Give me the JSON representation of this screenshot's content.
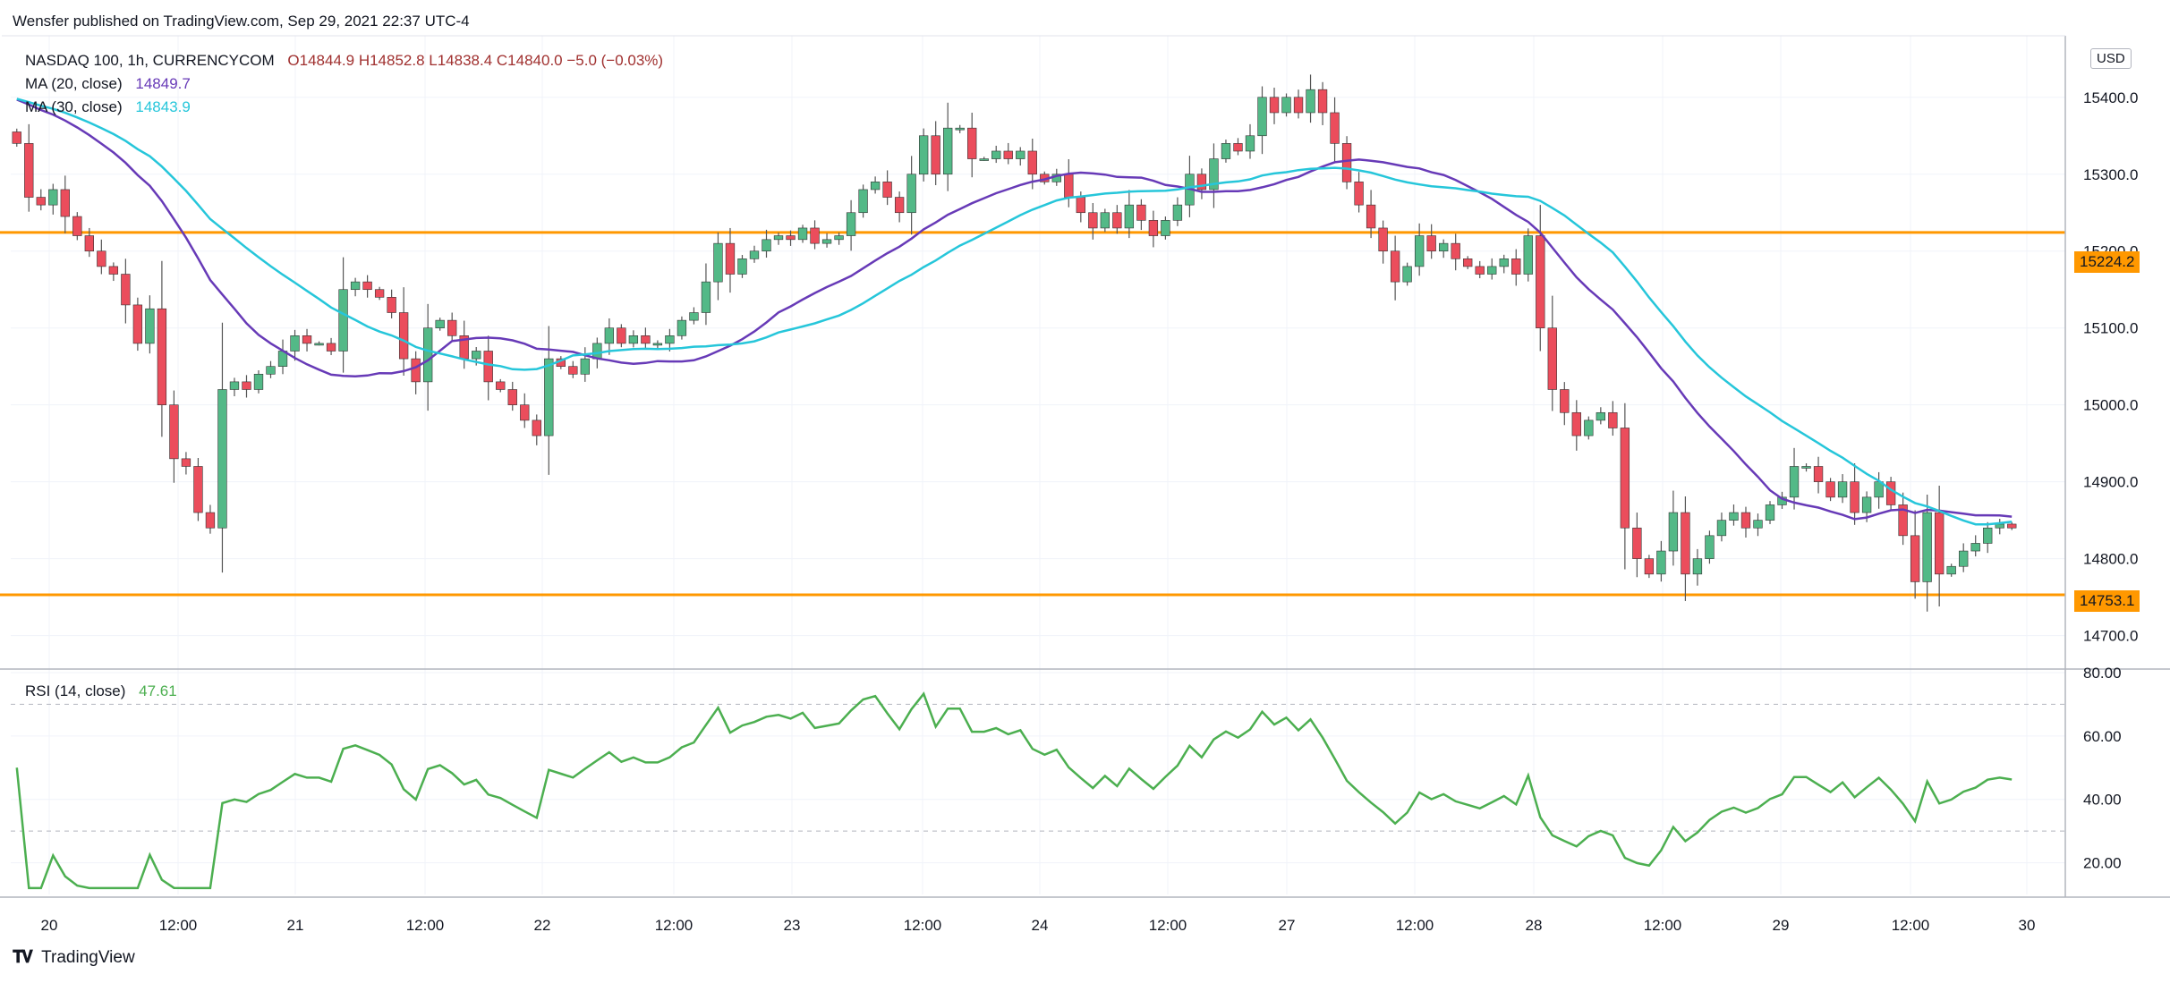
{
  "header": {
    "published_by": "Wensfer published on TradingView.com, Sep 29, 2021 22:37 UTC-4"
  },
  "legend": {
    "symbol": "NASDAQ 100, 1h, CURRENCYCOM",
    "ohlc": "O14844.9  H14852.8  L14838.4  C14840.0  −5.0 (−0.03%)",
    "ma20_label": "MA (20, close)",
    "ma20_value": "14849.7",
    "ma30_label": "MA (30, close)",
    "ma30_value": "14843.9",
    "rsi_label": "RSI (14, close)",
    "rsi_value": "47.61"
  },
  "currency_badge": "USD",
  "levels": {
    "upper": "15224.2",
    "lower": "14753.1"
  },
  "footer": {
    "logo_text": "TradingView"
  },
  "colors": {
    "up": "#53b987",
    "down": "#eb4d5c",
    "ma20": "#673ab7",
    "ma30": "#26c6da",
    "rsi": "#4caf50",
    "level": "#ff9800",
    "grid": "#f0f3fa"
  },
  "chart_data": [
    {
      "type": "candlestick",
      "title": "NASDAQ 100, 1h, CURRENCYCOM",
      "ylim": [
        14660,
        15480
      ],
      "y_ticks": [
        14700,
        14800,
        14900,
        15000,
        15100,
        15200,
        15300,
        15400,
        15500
      ],
      "x_ticks": [
        "20",
        "12:00",
        "21",
        "12:00",
        "22",
        "12:00",
        "23",
        "12:00",
        "24",
        "12:00",
        "27",
        "12:00",
        "28",
        "12:00",
        "29",
        "12:00",
        "30"
      ],
      "horizontal_levels": [
        15224.2,
        14753.1
      ],
      "close": [
        15340,
        15270,
        15260,
        15280,
        15245,
        15220,
        15200,
        15180,
        15170,
        15130,
        15080,
        15125,
        15000,
        14930,
        14920,
        14860,
        14840,
        15020,
        15030,
        15020,
        15040,
        15050,
        15070,
        15090,
        15080,
        15080,
        15070,
        15150,
        15160,
        15150,
        15140,
        15120,
        15060,
        15030,
        15100,
        15110,
        15090,
        15060,
        15070,
        15030,
        15020,
        15000,
        14980,
        14960,
        15060,
        15050,
        15040,
        15060,
        15080,
        15100,
        15080,
        15090,
        15080,
        15080,
        15090,
        15110,
        15120,
        15160,
        15210,
        15170,
        15190,
        15200,
        15215,
        15220,
        15215,
        15230,
        15210,
        15215,
        15220,
        15250,
        15280,
        15290,
        15270,
        15250,
        15300,
        15350,
        15300,
        15360,
        15360,
        15320,
        15320,
        15330,
        15320,
        15330,
        15300,
        15290,
        15300,
        15270,
        15250,
        15230,
        15250,
        15230,
        15260,
        15240,
        15220,
        15240,
        15260,
        15300,
        15280,
        15320,
        15340,
        15330,
        15350,
        15400,
        15380,
        15400,
        15380,
        15410,
        15380,
        15340,
        15290,
        15260,
        15230,
        15200,
        15160,
        15180,
        15220,
        15200,
        15210,
        15190,
        15180,
        15170,
        15180,
        15190,
        15170,
        15220,
        15100,
        15020,
        14990,
        14960,
        14980,
        14990,
        14970,
        14840,
        14800,
        14780,
        14810,
        14860,
        14780,
        14800,
        14830,
        14850,
        14860,
        14840,
        14850,
        14870,
        14880,
        14920,
        14920,
        14900,
        14880,
        14900,
        14860,
        14880,
        14900,
        14870,
        14830,
        14770,
        14860,
        14780,
        14790,
        14810,
        14820,
        14840,
        14845,
        14840
      ],
      "series": [
        {
          "name": "MA (20, close)",
          "last": 14849.7
        },
        {
          "name": "MA (30, close)",
          "last": 14843.9
        }
      ]
    },
    {
      "type": "line",
      "title": "RSI (14, close)",
      "ylim": [
        10,
        80
      ],
      "y_ticks": [
        20,
        40,
        60,
        80
      ],
      "reference_lines": [
        30,
        70
      ],
      "last": 47.61
    }
  ]
}
